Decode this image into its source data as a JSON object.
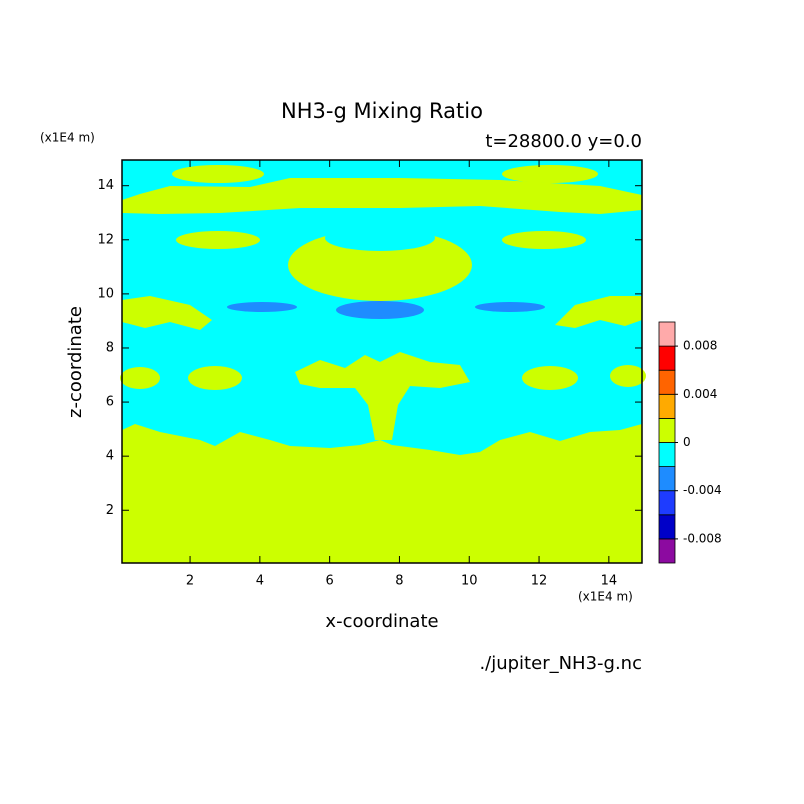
{
  "chart_data": {
    "type": "contour",
    "title": "NH3-g Mixing Ratio",
    "subtitle": "t=28800.0 y=0.0",
    "x_label": "x-coordinate",
    "y_label": "z-coordinate",
    "x_unit": "(x1E4 m)",
    "y_unit": "(x1E4 m)",
    "source": "./jupiter_NH3-g.nc",
    "xlim": [
      0.05,
      14.95
    ],
    "ylim": [
      0.05,
      14.95
    ],
    "xticks": [
      2,
      4,
      6,
      8,
      10,
      12,
      14
    ],
    "yticks": [
      2,
      4,
      6,
      8,
      10,
      12,
      14
    ],
    "colorbar": {
      "levels": [
        -0.008,
        -0.006,
        -0.004,
        -0.002,
        0,
        0.002,
        0.004,
        0.006,
        0.008
      ],
      "colors": [
        "#8c0aa0",
        "#0000c8",
        "#1e3cff",
        "#1e8cff",
        "#00ffff",
        "#ccff00",
        "#ffaa00",
        "#ff6400",
        "#ff0000",
        "#ffaaaa"
      ],
      "ticks": [
        -0.008,
        -0.004,
        0,
        0.004,
        0.008
      ]
    }
  }
}
